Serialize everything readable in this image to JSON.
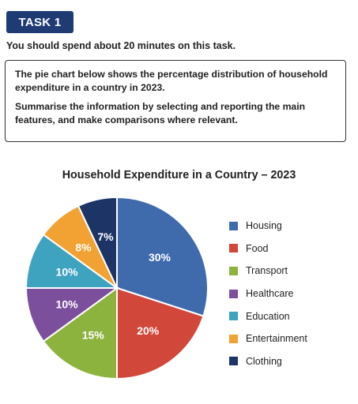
{
  "task": {
    "badge": "TASK 1",
    "instruction": "You should spend about 20 minutes on this task."
  },
  "prompt": {
    "paragraph1": "The pie chart below shows the percentage distribution of household expenditure in a country in 2023.",
    "paragraph2": "Summarise the information by selecting and reporting the main features, and make comparisons where relevant."
  },
  "chart_data": {
    "type": "pie",
    "title": "Household Expenditure in a Country – 2023",
    "categories": [
      "Housing",
      "Food",
      "Transport",
      "Healthcare",
      "Education",
      "Entertainment",
      "Clothing"
    ],
    "values": [
      30,
      20,
      15,
      10,
      10,
      8,
      7
    ],
    "labels": [
      "30%",
      "20%",
      "15%",
      "10%",
      "10%",
      "8%",
      "7%"
    ],
    "colors": [
      "#3f6bad",
      "#d1483b",
      "#8db33f",
      "#7c4f9c",
      "#3ea3bf",
      "#f2a232",
      "#1c3566"
    ],
    "legend": "right",
    "start_angle": "12 o'clock, clockwise"
  }
}
